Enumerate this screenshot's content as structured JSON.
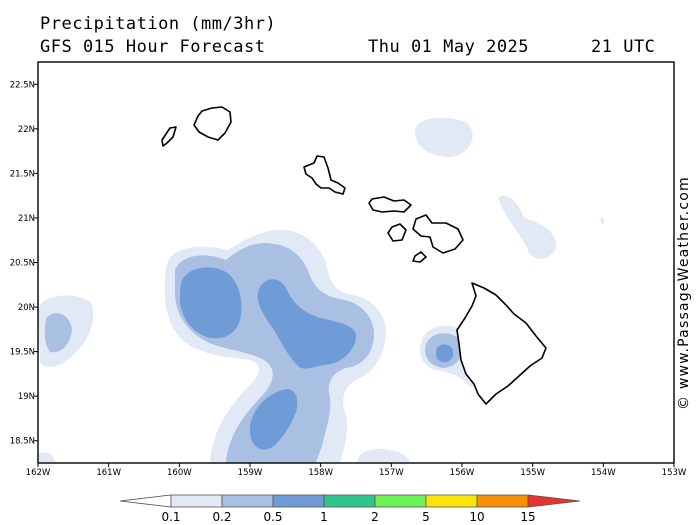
{
  "header": {
    "title": "Precipitation (mm/3hr)",
    "subtitle": "GFS 015 Hour Forecast",
    "date": "Thu 01 May 2025",
    "time": "21 UTC"
  },
  "watermark": "© www.PassageWeather.com",
  "map": {
    "lon_range": [
      -162,
      -153
    ],
    "lat_range": [
      18.25,
      22.75
    ],
    "lon_ticks": [
      "162W",
      "161W",
      "160W",
      "159W",
      "158W",
      "157W",
      "156W",
      "155W",
      "154W",
      "153W"
    ],
    "lat_ticks": [
      "18.5N",
      "19N",
      "19.5N",
      "20N",
      "20.5N",
      "21N",
      "21.5N",
      "22N",
      "22.5N"
    ],
    "colors": {
      "c01": "#e1e9f6",
      "c02": "#a9c0e3",
      "c05": "#6f9bd6",
      "land": "#000000"
    }
  },
  "legend": {
    "labels": [
      "0.1",
      "0.2",
      "0.5",
      "1",
      "2",
      "5",
      "10",
      "15"
    ],
    "colors": [
      "#ffffff",
      "#e1e9f6",
      "#a9c0e3",
      "#6f9bd6",
      "#2fc38d",
      "#6ef255",
      "#fbe40a",
      "#f98e0a",
      "#e8332e"
    ]
  }
}
